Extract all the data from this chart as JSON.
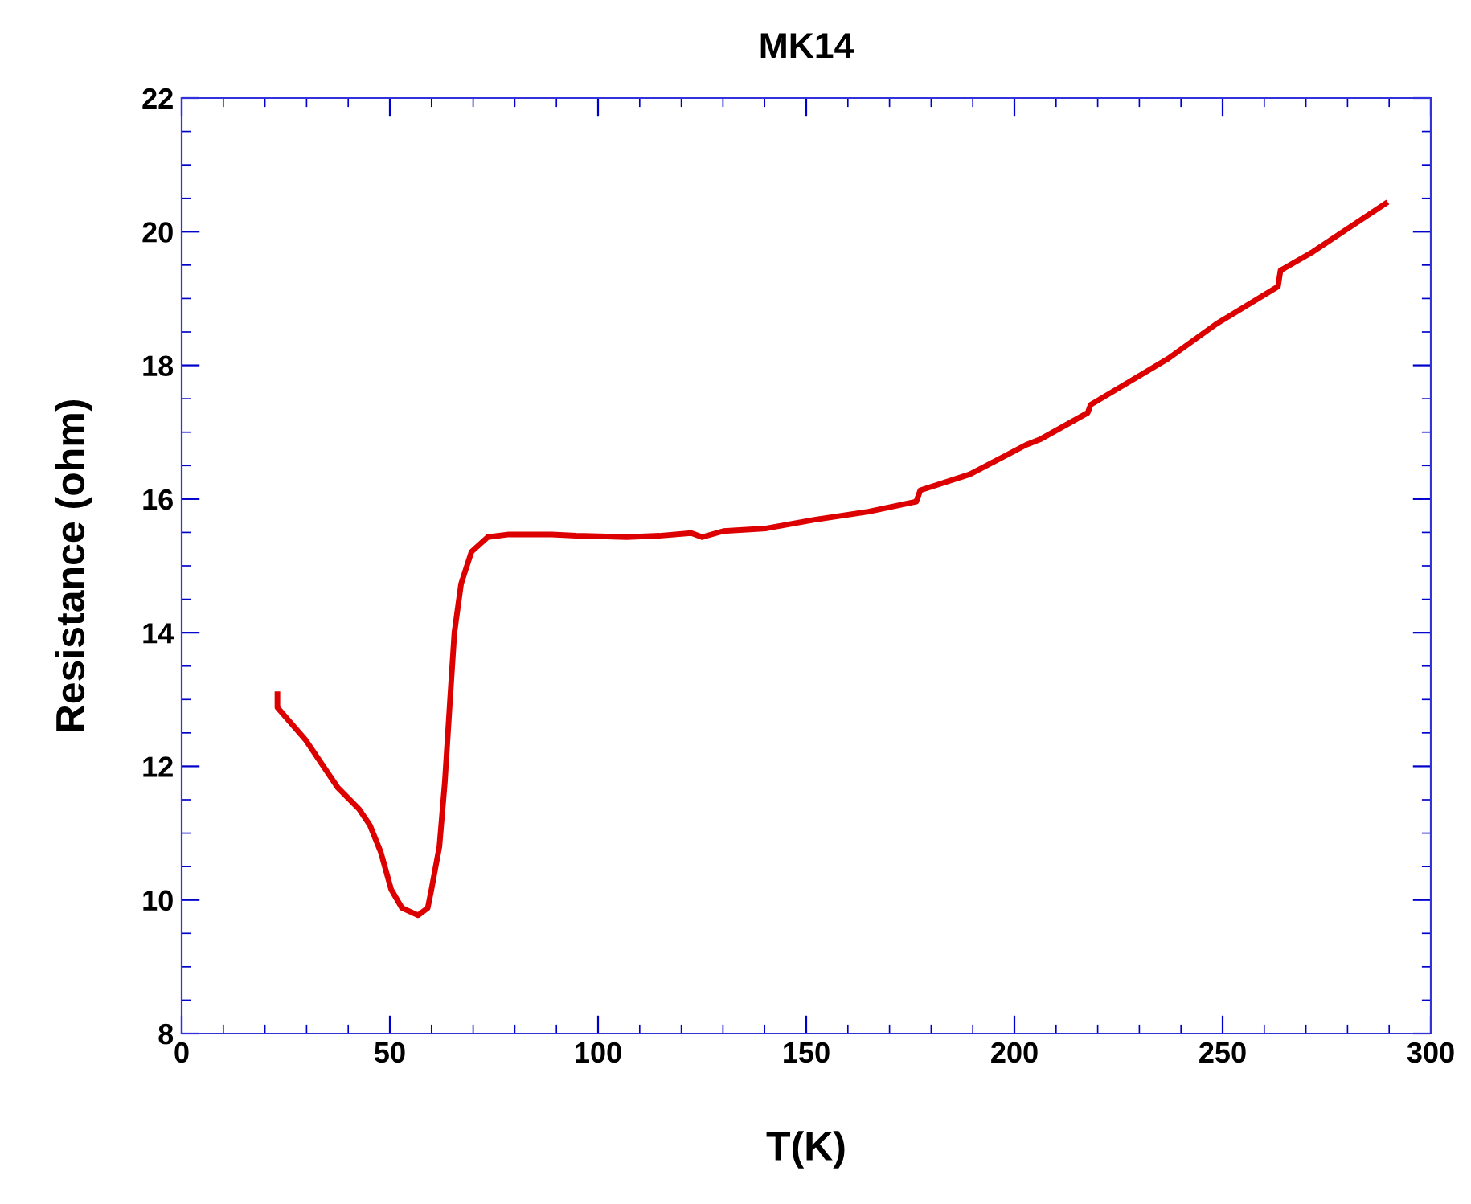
{
  "chart_data": {
    "type": "line",
    "title": "MK14",
    "xlabel": "T(K)",
    "ylabel": "Resistance (ohm)",
    "xlim": [
      0,
      300
    ],
    "xticks": [
      0,
      50,
      100,
      150,
      200,
      250,
      300
    ],
    "ylim": [
      8,
      22
    ],
    "yticks": [
      8,
      10,
      12,
      14,
      16,
      18,
      20,
      22
    ],
    "grid": false,
    "legend": false,
    "marker": "none",
    "line_style": "solid",
    "series": [
      {
        "color": "#dd0000",
        "x": [
          23.0,
          23.0,
          29.7,
          37.5,
          42.6,
          45.2,
          47.8,
          50.3,
          52.9,
          56.8,
          59.1,
          60.0,
          61.9,
          63.2,
          64.5,
          65.5,
          67.1,
          69.6,
          73.5,
          78.6,
          88.9,
          94.7,
          106.9,
          114.7,
          122.4,
          125.0,
          130.1,
          140.4,
          152.0,
          164.9,
          176.4,
          177.4,
          189.3,
          202.8,
          206.1,
          217.6,
          218.3,
          236.9,
          248.5,
          263.3,
          263.9,
          271.7,
          289.1
        ],
        "values": [
          13.08,
          12.88,
          12.4,
          11.68,
          11.36,
          11.12,
          10.72,
          10.16,
          9.88,
          9.77,
          9.88,
          10.16,
          10.8,
          11.76,
          13.04,
          14.0,
          14.73,
          15.21,
          15.43,
          15.47,
          15.47,
          15.45,
          15.43,
          15.45,
          15.49,
          15.43,
          15.52,
          15.56,
          15.69,
          15.81,
          15.96,
          16.13,
          16.37,
          16.81,
          16.89,
          17.29,
          17.41,
          18.1,
          18.62,
          19.18,
          19.42,
          19.7,
          20.42
        ]
      }
    ]
  }
}
